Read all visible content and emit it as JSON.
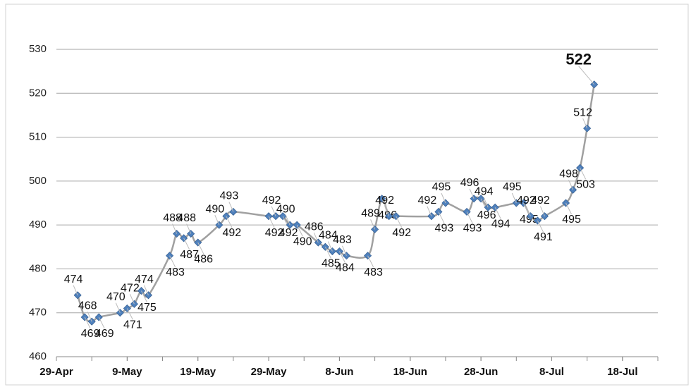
{
  "chart_data": {
    "type": "line",
    "x": [
      "2-May",
      "3-May",
      "4-May",
      "5-May",
      "8-May",
      "9-May",
      "10-May",
      "11-May",
      "12-May",
      "15-May",
      "16-May",
      "17-May",
      "18-May",
      "19-May",
      "22-May",
      "23-May",
      "24-May",
      "29-May",
      "30-May",
      "31-May",
      "1-Jun",
      "2-Jun",
      "5-Jun",
      "6-Jun",
      "7-Jun",
      "8-Jun",
      "9-Jun",
      "12-Jun",
      "13-Jun",
      "14-Jun",
      "15-Jun",
      "16-Jun",
      "21-Jun",
      "22-Jun",
      "23-Jun",
      "26-Jun",
      "27-Jun",
      "28-Jun",
      "29-Jun",
      "30-Jun",
      "3-Jul",
      "4-Jul",
      "5-Jul",
      "6-Jul",
      "7-Jul",
      "10-Jul",
      "11-Jul",
      "12-Jul",
      "13-Jul",
      "14-Jul"
    ],
    "series": [
      {
        "color": "#a0a0a0",
        "marker_color": "#4f81bd",
        "values": [
          474,
          469,
          468,
          469,
          470,
          471,
          472,
          475,
          474,
          483,
          488,
          487,
          488,
          486,
          490,
          492,
          493,
          492,
          492,
          492,
          490,
          490,
          486,
          485,
          484,
          484,
          483,
          483,
          489,
          496,
          492,
          492,
          492,
          493,
          495,
          493,
          496,
          496,
          494,
          494,
          495,
          495,
          492,
          491,
          492,
          495,
          498,
          503,
          512,
          522
        ]
      }
    ],
    "xlim": [
      "29-Apr",
      "23-Jul"
    ],
    "xticks": [
      "29-Apr",
      "9-May",
      "19-May",
      "29-May",
      "8-Jun",
      "18-Jun",
      "28-Jun",
      "8-Jul",
      "18-Jul"
    ],
    "ylim": [
      460,
      530
    ],
    "yticks": [
      460,
      470,
      480,
      490,
      500,
      510,
      520,
      530
    ],
    "grid": true
  }
}
